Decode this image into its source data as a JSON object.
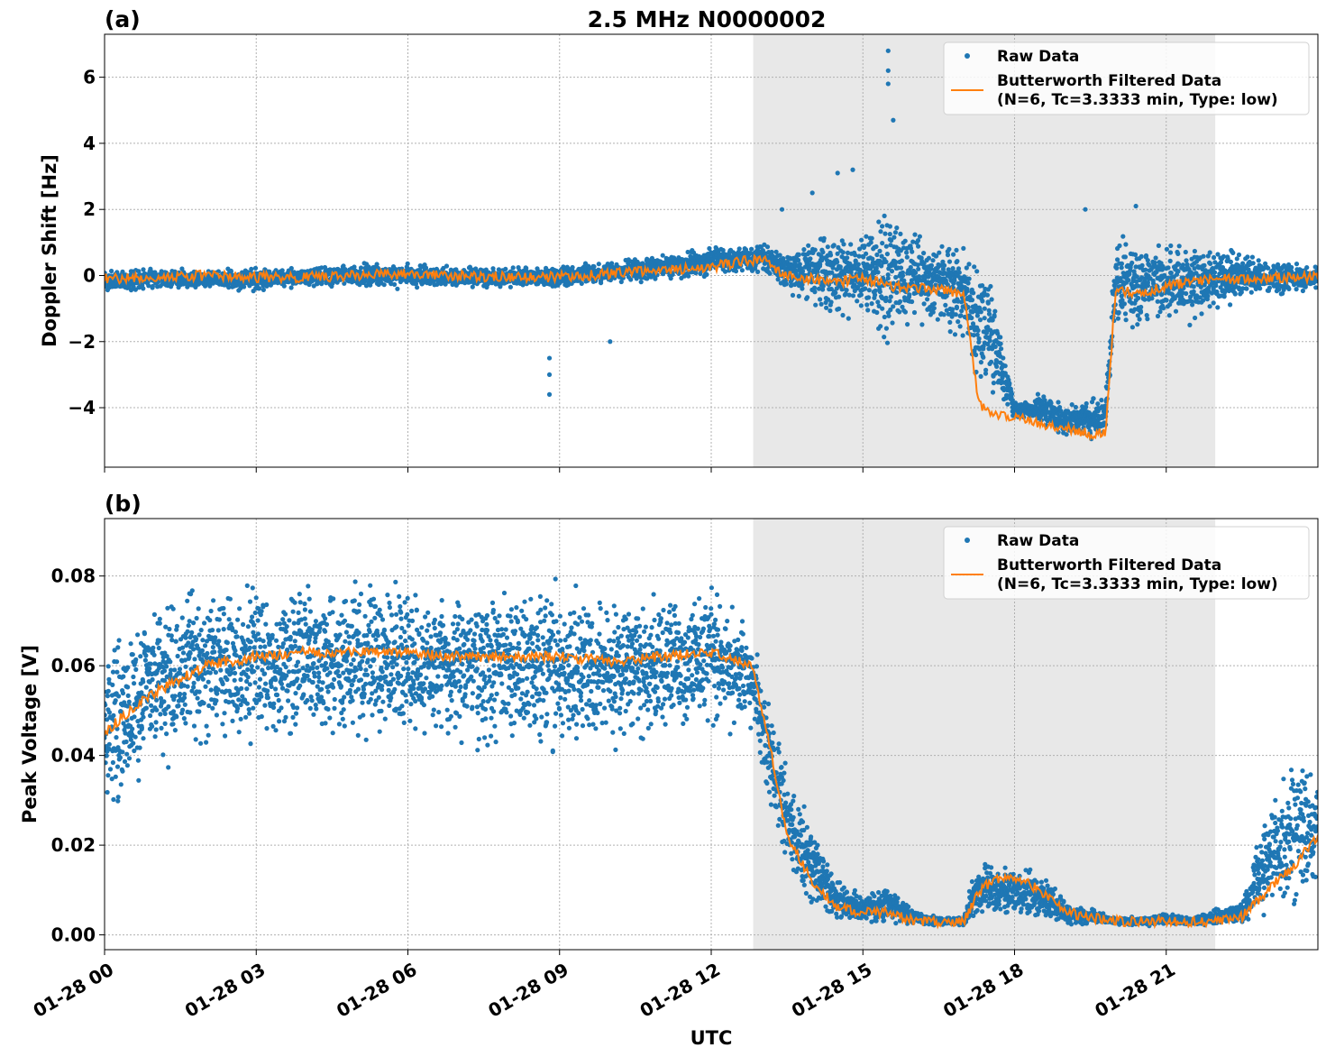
{
  "figure": {
    "title": "2.5 MHz N0000002",
    "xlabel": "UTC",
    "x_tick_labels": [
      "01-28 00",
      "01-28 03",
      "01-28 06",
      "01-28 09",
      "01-28 12",
      "01-28 15",
      "01-28 18",
      "01-28 21"
    ],
    "shaded_interval_hours": [
      12.83,
      21.97
    ],
    "shade_color": "#e8e8e8",
    "raw_color": "#1f77b4",
    "filtered_color": "#ff7f0e"
  },
  "chart_data": [
    {
      "type": "scatter",
      "panel": "(a)",
      "title": "2.5 MHz N0000002",
      "xlabel": "",
      "ylabel": "Doppler Shift [Hz]",
      "xlim_hours": [
        0,
        24
      ],
      "ylim": [
        -5.8,
        7.3
      ],
      "yticks": [
        6,
        4,
        2,
        0,
        -2,
        -4
      ],
      "ytick_labels": [
        "6",
        "4",
        "2",
        "0",
        "−2",
        "−4"
      ],
      "grid": true,
      "legend_position": "top-right",
      "legend": [
        {
          "label": "Raw Data",
          "kind": "marker"
        },
        {
          "label": "Butterworth Filtered Data",
          "label2": "(N=6, Tc=3.3333 min, Type: low)",
          "kind": "line"
        }
      ],
      "series": [
        {
          "name": "Raw Data",
          "kind": "band",
          "x_hours": [
            0,
            1,
            2,
            3,
            4,
            5,
            6,
            7,
            8,
            9,
            10,
            11,
            12,
            12.5,
            13,
            13.5,
            14,
            14.5,
            15,
            15.5,
            16,
            16.5,
            17,
            17.2,
            17.5,
            18,
            18.5,
            19,
            19.5,
            19.8,
            20,
            20.5,
            21,
            21.5,
            22,
            22.5,
            23,
            24
          ],
          "low": [
            -0.6,
            -0.4,
            -0.4,
            -0.5,
            -0.4,
            -0.4,
            -0.4,
            -0.4,
            -0.4,
            -0.4,
            -0.3,
            -0.2,
            -0.1,
            0.0,
            0.0,
            -0.5,
            -1.0,
            -1.5,
            -1.2,
            -2.5,
            -1.5,
            -1.8,
            -2.0,
            -3.6,
            -4.0,
            -4.4,
            -4.6,
            -5.0,
            -5.1,
            -5.0,
            -1.5,
            -1.8,
            -1.8,
            -1.5,
            -1.2,
            -0.8,
            -0.6,
            -0.5
          ],
          "high": [
            0.2,
            0.3,
            0.2,
            0.3,
            0.3,
            0.4,
            0.4,
            0.3,
            0.3,
            0.3,
            0.5,
            0.7,
            0.9,
            1.0,
            1.1,
            0.8,
            1.2,
            1.5,
            1.4,
            2.2,
            1.4,
            1.3,
            1.3,
            0.8,
            0.8,
            -3.8,
            -3.5,
            -3.8,
            -3.6,
            -3.5,
            1.4,
            1.3,
            1.2,
            1.2,
            1.0,
            0.8,
            0.5,
            0.4
          ]
        },
        {
          "name": "Butterworth Filtered Data",
          "kind": "line",
          "x_hours": [
            0,
            1,
            2,
            3,
            4,
            5,
            6,
            7,
            8,
            9,
            10,
            11,
            12,
            12.5,
            13,
            13.5,
            14,
            14.5,
            15,
            15.5,
            16,
            16.5,
            17,
            17.3,
            17.6,
            18,
            18.5,
            19,
            19.5,
            19.8,
            20,
            20.5,
            21,
            21.5,
            22,
            22.5,
            23,
            24
          ],
          "y": [
            -0.1,
            -0.05,
            0.0,
            -0.05,
            -0.05,
            0.0,
            0.05,
            0.0,
            -0.05,
            -0.05,
            0.05,
            0.15,
            0.25,
            0.4,
            0.5,
            0.0,
            -0.1,
            -0.2,
            -0.1,
            -0.3,
            -0.4,
            -0.4,
            -0.6,
            -3.9,
            -4.2,
            -4.3,
            -4.5,
            -4.6,
            -4.8,
            -4.7,
            -0.4,
            -0.6,
            -0.3,
            -0.2,
            -0.1,
            -0.1,
            -0.05,
            -0.05
          ]
        },
        {
          "name": "Raw Data spikes",
          "kind": "points",
          "x_hours": [
            8.8,
            8.8,
            8.8,
            10.0,
            14.8,
            15.5,
            15.5,
            15.5,
            15.6,
            13.4,
            14.0,
            14.5,
            19.4,
            20.4
          ],
          "y": [
            -3.6,
            -3.0,
            -2.5,
            -2.0,
            3.2,
            6.8,
            6.2,
            5.8,
            4.7,
            2.0,
            2.5,
            3.1,
            2.0,
            2.1
          ]
        }
      ]
    },
    {
      "type": "scatter",
      "panel": "(b)",
      "title": "",
      "xlabel": "UTC",
      "ylabel": "Peak Voltage [V]",
      "xlim_hours": [
        0,
        24
      ],
      "ylim": [
        -0.0033,
        0.0928
      ],
      "yticks": [
        0.08,
        0.06,
        0.04,
        0.02,
        0.0
      ],
      "ytick_labels": [
        "0.08",
        "0.06",
        "0.04",
        "0.02",
        "0.00"
      ],
      "grid": true,
      "legend_position": "top-right",
      "legend": [
        {
          "label": "Raw Data",
          "kind": "marker"
        },
        {
          "label": "Butterworth Filtered Data",
          "label2": "(N=6, Tc=3.3333 min, Type: low)",
          "kind": "line"
        }
      ],
      "series": [
        {
          "name": "Raw Data",
          "kind": "band",
          "x_hours": [
            0,
            0.5,
            1,
            1.5,
            2,
            3,
            4,
            5,
            6,
            7,
            8,
            9,
            10,
            11,
            12,
            12.8,
            13.2,
            13.5,
            14,
            14.5,
            15,
            15.5,
            16,
            16.5,
            17,
            17.2,
            17.5,
            18,
            18.5,
            19,
            19.5,
            20,
            20.5,
            21,
            21.5,
            22,
            22.5,
            23,
            23.5,
            24
          ],
          "low": [
            0.025,
            0.03,
            0.035,
            0.04,
            0.04,
            0.04,
            0.04,
            0.04,
            0.042,
            0.04,
            0.04,
            0.04,
            0.04,
            0.042,
            0.045,
            0.045,
            0.025,
            0.012,
            0.005,
            0.003,
            0.002,
            0.002,
            0.002,
            0.002,
            0.002,
            0.003,
            0.004,
            0.003,
            0.003,
            0.002,
            0.002,
            0.002,
            0.002,
            0.002,
            0.002,
            0.002,
            0.002,
            0.004,
            0.004,
            0.005
          ],
          "high": [
            0.068,
            0.072,
            0.076,
            0.078,
            0.08,
            0.082,
            0.082,
            0.082,
            0.08,
            0.08,
            0.08,
            0.08,
            0.078,
            0.078,
            0.08,
            0.072,
            0.05,
            0.04,
            0.025,
            0.012,
            0.01,
            0.012,
            0.006,
            0.004,
            0.004,
            0.016,
            0.017,
            0.017,
            0.014,
            0.008,
            0.006,
            0.004,
            0.004,
            0.005,
            0.004,
            0.006,
            0.008,
            0.03,
            0.04,
            0.045
          ]
        },
        {
          "name": "Butterworth Filtered Data",
          "kind": "line",
          "x_hours": [
            0,
            0.5,
            1,
            1.5,
            2,
            3,
            4,
            5,
            6,
            7,
            8,
            9,
            10,
            11,
            12,
            12.8,
            13.2,
            13.5,
            14,
            14.5,
            15,
            15.5,
            16,
            16.5,
            17,
            17.3,
            17.6,
            18,
            18.5,
            19,
            19.5,
            20,
            20.5,
            21,
            21.5,
            22,
            22.5,
            23,
            23.5,
            24
          ],
          "y": [
            0.045,
            0.05,
            0.054,
            0.057,
            0.06,
            0.062,
            0.063,
            0.063,
            0.063,
            0.062,
            0.062,
            0.062,
            0.061,
            0.062,
            0.063,
            0.06,
            0.04,
            0.022,
            0.012,
            0.006,
            0.005,
            0.005,
            0.003,
            0.003,
            0.003,
            0.01,
            0.012,
            0.013,
            0.01,
            0.005,
            0.004,
            0.003,
            0.003,
            0.003,
            0.003,
            0.003,
            0.004,
            0.01,
            0.015,
            0.022
          ]
        }
      ]
    }
  ]
}
